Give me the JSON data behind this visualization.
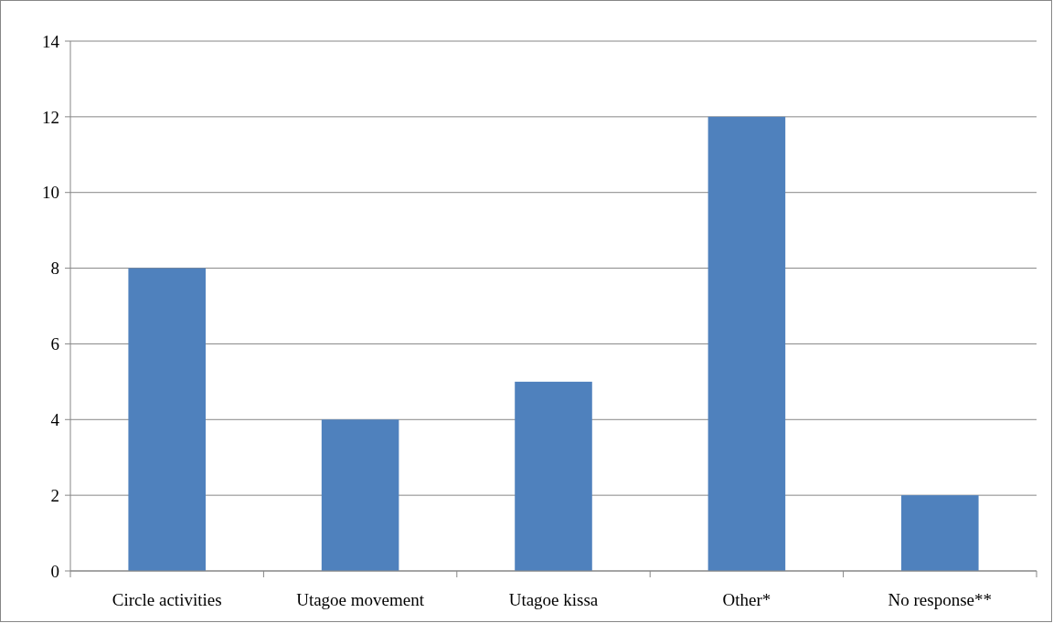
{
  "chart_data": {
    "type": "bar",
    "categories": [
      "Circle activities",
      "Utagoe movement",
      "Utagoe kissa",
      "Other*",
      "No response**"
    ],
    "values": [
      8,
      4,
      5,
      12,
      2
    ],
    "color": "#4f81bd",
    "ylim": [
      0,
      14
    ],
    "yticks": [
      0,
      2,
      4,
      6,
      8,
      10,
      12,
      14
    ],
    "grid": "y"
  }
}
